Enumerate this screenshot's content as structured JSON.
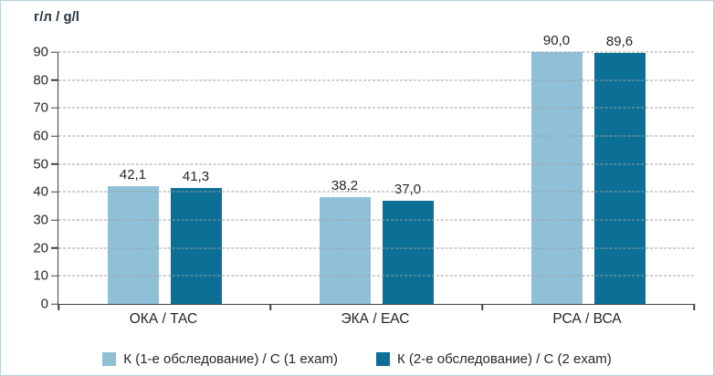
{
  "chart_data": {
    "type": "bar",
    "title": "",
    "ylabel": "г/л / g/l",
    "xlabel": "",
    "categories": [
      "ОКА / ТАС",
      "ЭКА / ЕАС",
      "РСА / ВСА"
    ],
    "series": [
      {
        "name": "К (1-е обследование) / C (1 exam)",
        "color": "#8fc0d8",
        "values": [
          42.1,
          38.2,
          90.0
        ],
        "labels": [
          "42,1",
          "38,2",
          "90,0"
        ]
      },
      {
        "name": "К (2-е обследование) / C (2 exam)",
        "color": "#0c6f96",
        "values": [
          41.3,
          37.0,
          89.6
        ],
        "labels": [
          "41,3",
          "37,0",
          "89,6"
        ]
      }
    ],
    "ylim": [
      0,
      90
    ],
    "yticks": [
      0,
      10,
      20,
      30,
      40,
      50,
      60,
      70,
      80,
      90
    ],
    "grid": "horizontal-dashed",
    "legend_position": "bottom",
    "decimal_separator": ","
  }
}
